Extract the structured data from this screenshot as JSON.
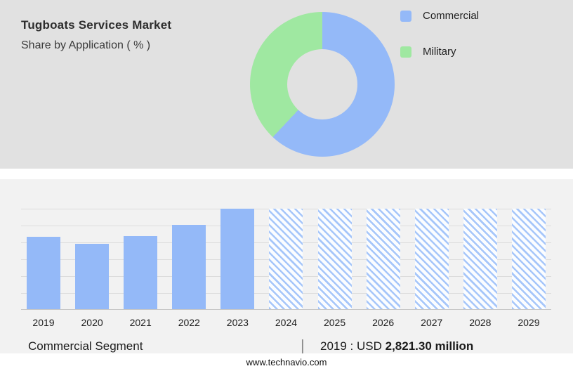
{
  "header": {
    "title": "Tugboats Services Market",
    "subtitle": "Share by Application ( % )"
  },
  "legend": {
    "items": [
      {
        "label": "Commercial",
        "color": "#94b9f8"
      },
      {
        "label": "Military",
        "color": "#9fe8a1"
      }
    ]
  },
  "chart_data": [
    {
      "type": "pie",
      "title": "Share by Application ( % )",
      "labels": [
        "Commercial",
        "Military"
      ],
      "values": [
        62,
        38
      ],
      "colors": [
        "#94b9f8",
        "#9fe8a1"
      ],
      "donut_hole_ratio": 0.48,
      "legend_position": "right",
      "note": "values estimated from arc angles; no numeric labels shown"
    },
    {
      "type": "bar",
      "categories": [
        "2019",
        "2020",
        "2021",
        "2022",
        "2023",
        "2024",
        "2025",
        "2026",
        "2027",
        "2028",
        "2029"
      ],
      "values": [
        72,
        65,
        73,
        84,
        100,
        100,
        100,
        100,
        100,
        100,
        100
      ],
      "forecast_from": "2024",
      "bar_color": "#94b9f8",
      "forecast_stripe_color": "#a6c6fa",
      "forecast_bg_color": "#fbfdff",
      "ylim": [
        0,
        100
      ],
      "grid": true,
      "xlabel": "",
      "ylabel": "",
      "note": "relative heights, 2023 = 100; 2024-2029 shown as hatched forecast bars; y-axis has no tick labels"
    }
  ],
  "caption": {
    "segment": "Commercial Segment",
    "divider": "|",
    "value_prefix": "2019 : USD ",
    "value_bold": "2,821.30 million"
  },
  "footer": {
    "website": "www.technavio.com"
  }
}
